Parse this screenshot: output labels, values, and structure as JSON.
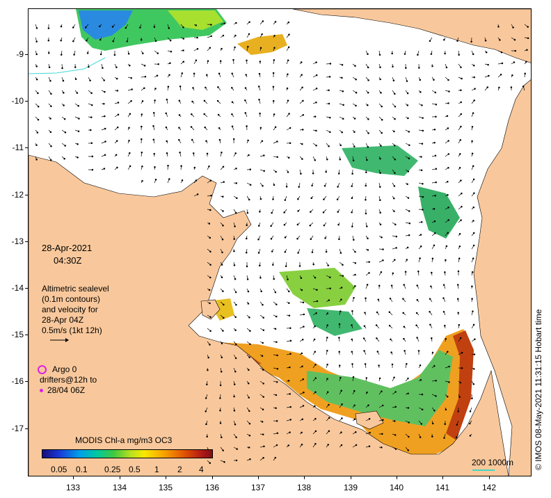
{
  "map": {
    "lat_ticks": [
      "-9",
      "-10",
      "-11",
      "-12",
      "-13",
      "-14",
      "-15",
      "-16",
      "-17"
    ],
    "lon_ticks": [
      "133",
      "134",
      "135",
      "136",
      "137",
      "138",
      "139",
      "140",
      "141",
      "142"
    ],
    "land_color": "#f8c89c",
    "ocean_color": "#ffffff"
  },
  "overlay": {
    "date": "28-Apr-2021",
    "time": "04:30Z",
    "altimetry_lines": [
      "Altimetric sealevel",
      "(0.1m contours)",
      "and velocity for",
      "28-Apr 04Z",
      "0.5m/s (1kt 12h)"
    ],
    "argo_label": "Argo 0",
    "drifters_label": "drifters@12h to",
    "drifters_date": "28/04 06Z",
    "argo_color": "#e020e0"
  },
  "colorbar": {
    "title": "MODIS Chl-a mg/m3 OC3",
    "labels": [
      "0.05",
      "0.1",
      "0.25",
      "0.5",
      "1",
      "2",
      "4"
    ]
  },
  "scale": {
    "label": "200  1000m",
    "color": "#40d8c0"
  },
  "credit": "© IMOS 08-May-2021 11:31:15 Hobart time"
}
